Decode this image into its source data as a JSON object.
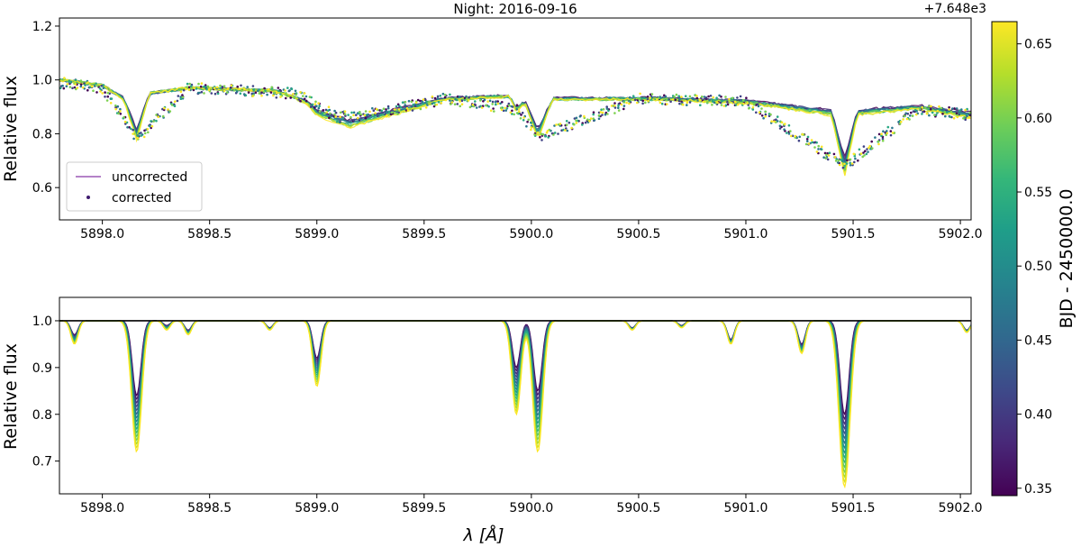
{
  "chart_data": [
    {
      "type": "line",
      "title": "Night: 2016-09-16",
      "xlabel": "",
      "ylabel": "Relative flux",
      "xlim": [
        5897.8,
        5902.05
      ],
      "ylim": [
        0.48,
        1.23
      ],
      "x_ticks": [
        "5898.0",
        "5898.5",
        "5899.0",
        "5899.5",
        "5900.0",
        "5900.5",
        "5901.0",
        "5901.5",
        "5902.0"
      ],
      "y_ticks": [
        "0.6",
        "0.8",
        "1.0",
        "1.2"
      ],
      "legend": {
        "placement": "lower-left",
        "entries": [
          "uncorrected",
          "corrected"
        ]
      },
      "series": [
        {
          "name": "uncorrected",
          "x": [
            5897.8,
            5898.0,
            5898.1,
            5898.16,
            5898.22,
            5898.4,
            5898.8,
            5898.95,
            5899.0,
            5899.15,
            5899.3,
            5899.6,
            5899.9,
            5899.93,
            5899.97,
            5900.03,
            5900.1,
            5900.6,
            5901.0,
            5901.4,
            5901.46,
            5901.52,
            5901.8,
            5902.05
          ],
          "y": [
            1.0,
            0.98,
            0.93,
            0.8,
            0.95,
            0.97,
            0.96,
            0.92,
            0.88,
            0.84,
            0.87,
            0.93,
            0.94,
            0.89,
            0.92,
            0.8,
            0.93,
            0.93,
            0.92,
            0.88,
            0.68,
            0.88,
            0.9,
            0.87
          ]
        },
        {
          "name": "corrected",
          "x": [
            5897.8,
            5898.0,
            5898.16,
            5898.4,
            5898.9,
            5899.1,
            5899.3,
            5899.6,
            5899.93,
            5900.03,
            5900.5,
            5901.0,
            5901.46,
            5901.8,
            5902.05
          ],
          "y": [
            0.99,
            0.97,
            0.78,
            0.97,
            0.95,
            0.86,
            0.88,
            0.93,
            0.89,
            0.79,
            0.93,
            0.92,
            0.68,
            0.89,
            0.87
          ]
        }
      ]
    },
    {
      "type": "line",
      "title": "",
      "xlabel": "λ [Å]",
      "ylabel": "Relative flux",
      "xlim": [
        5897.8,
        5902.05
      ],
      "ylim": [
        0.63,
        1.05
      ],
      "x_ticks": [
        "5898.0",
        "5898.5",
        "5899.0",
        "5899.5",
        "5900.0",
        "5900.5",
        "5901.0",
        "5901.5",
        "5902.0"
      ],
      "y_ticks": [
        "0.7",
        "0.8",
        "0.9",
        "1.0"
      ],
      "reference_line_y": 1.0,
      "absorption_lines": [
        {
          "center": 5897.87,
          "depth_min": 0.03,
          "depth_max": 0.05
        },
        {
          "center": 5898.16,
          "depth_min": 0.16,
          "depth_max": 0.28
        },
        {
          "center": 5898.3,
          "depth_min": 0.01,
          "depth_max": 0.02
        },
        {
          "center": 5898.4,
          "depth_min": 0.02,
          "depth_max": 0.03
        },
        {
          "center": 5898.78,
          "depth_min": 0.015,
          "depth_max": 0.02
        },
        {
          "center": 5899.0,
          "depth_min": 0.08,
          "depth_max": 0.14
        },
        {
          "center": 5899.93,
          "depth_min": 0.1,
          "depth_max": 0.2
        },
        {
          "center": 5900.03,
          "depth_min": 0.15,
          "depth_max": 0.28
        },
        {
          "center": 5900.47,
          "depth_min": 0.015,
          "depth_max": 0.02
        },
        {
          "center": 5900.7,
          "depth_min": 0.01,
          "depth_max": 0.015
        },
        {
          "center": 5900.93,
          "depth_min": 0.04,
          "depth_max": 0.05
        },
        {
          "center": 5901.26,
          "depth_min": 0.05,
          "depth_max": 0.07
        },
        {
          "center": 5901.46,
          "depth_min": 0.2,
          "depth_max": 0.355
        },
        {
          "center": 5902.03,
          "depth_min": 0.02,
          "depth_max": 0.025
        }
      ]
    }
  ],
  "colorbar": {
    "label": "BJD - 2450000.0",
    "offset_text": "+7.648e3",
    "range": [
      0.345,
      0.665
    ],
    "ticks": [
      "0.35",
      "0.40",
      "0.45",
      "0.50",
      "0.55",
      "0.60",
      "0.65"
    ],
    "colormap": [
      "#440154",
      "#482878",
      "#3e4989",
      "#31688e",
      "#26828e",
      "#1f9e89",
      "#35b779",
      "#6ece58",
      "#b5de2b",
      "#fde725"
    ]
  }
}
